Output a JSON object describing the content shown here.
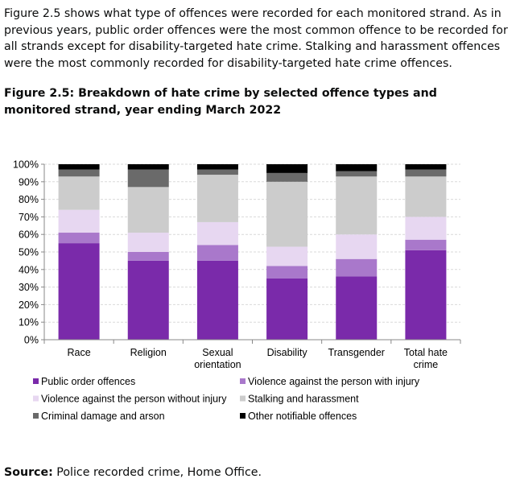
{
  "intro_text": "Figure 2.5 shows what type of offences were recorded for each monitored strand. As in previous years, public order offences were the most common offence to be recorded for all strands except for disability-targeted hate crime. Stalking and harassment offences were the most commonly recorded for disability-targeted hate crime offences.",
  "figure_title": "Figure 2.5: Breakdown of hate crime by selected offence types and monitored strand, year ending March 2022",
  "source_label": "Source:",
  "source_text": " Police recorded crime, Home Office.",
  "chart_data": {
    "type": "bar",
    "stacked": true,
    "categories": [
      [
        "Race"
      ],
      [
        "Religion"
      ],
      [
        "Sexual",
        "orientation"
      ],
      [
        "Disability"
      ],
      [
        "Transgender"
      ],
      [
        "Total hate",
        "crime"
      ]
    ],
    "ylim": [
      0,
      100
    ],
    "yticks": [
      "0%",
      "10%",
      "20%",
      "30%",
      "40%",
      "50%",
      "60%",
      "70%",
      "80%",
      "90%",
      "100%"
    ],
    "grid": true,
    "legend_position": "bottom",
    "series": [
      {
        "name": "Public order offences",
        "color": "#7a2aaa",
        "values": [
          55,
          45,
          45,
          35,
          36,
          51
        ]
      },
      {
        "name": "Violence against the person with injury",
        "color": "#a978cb",
        "values": [
          6,
          5,
          9,
          7,
          10,
          6
        ]
      },
      {
        "name": "Violence against the person without injury",
        "color": "#e7d7f1",
        "values": [
          13,
          11,
          13,
          11,
          14,
          13
        ]
      },
      {
        "name": "Stalking and harassment",
        "color": "#cccccc",
        "values": [
          19,
          26,
          27,
          37,
          33,
          23
        ]
      },
      {
        "name": "Criminal damage and arson",
        "color": "#6a6a6a",
        "values": [
          4,
          10,
          3,
          5,
          3,
          4
        ]
      },
      {
        "name": "Other notifiable offences",
        "color": "#000000",
        "values": [
          3,
          3,
          3,
          5,
          4,
          3
        ]
      }
    ]
  }
}
